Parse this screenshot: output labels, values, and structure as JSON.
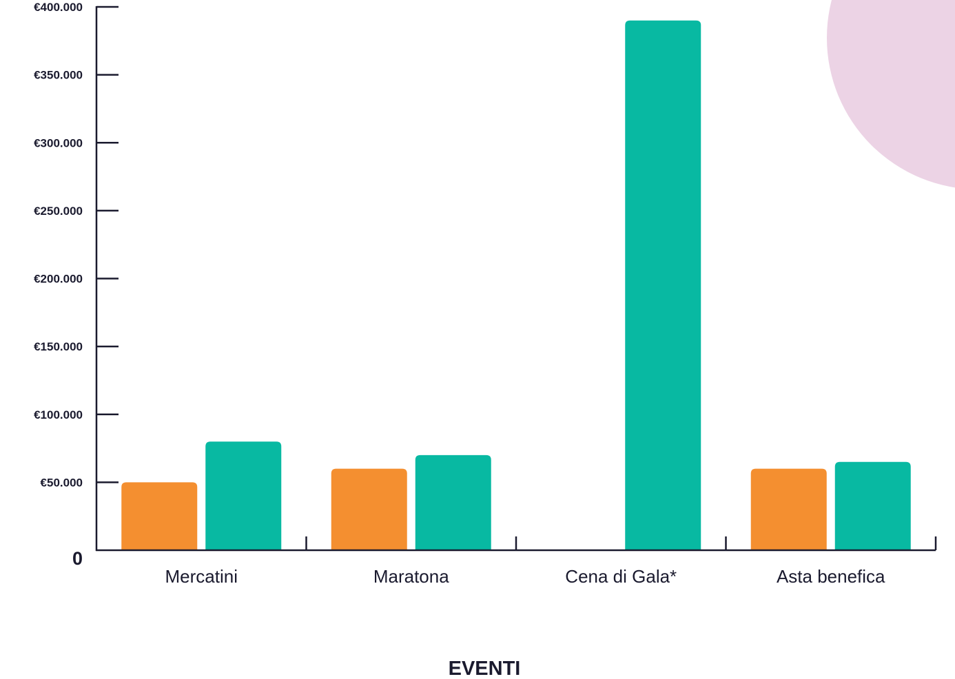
{
  "chart_data": {
    "type": "bar",
    "title": "",
    "xlabel": "EVENTI",
    "ylabel": "",
    "categories": [
      "Mercatini",
      "Maratona",
      "Cena di Gala*",
      "Asta benefica"
    ],
    "series": [
      {
        "values": [
          50000,
          60000,
          0,
          60000
        ],
        "color": "#f48f30"
      },
      {
        "values": [
          80000,
          70000,
          390000,
          65000
        ],
        "color": "#08b9a2"
      }
    ],
    "ylim": [
      0,
      400000
    ],
    "yticks": [
      {
        "value": 0,
        "label": "0"
      },
      {
        "value": 50000,
        "label": "€50.000"
      },
      {
        "value": 100000,
        "label": "€100.000"
      },
      {
        "value": 150000,
        "label": "€150.000"
      },
      {
        "value": 200000,
        "label": "€200.000"
      },
      {
        "value": 250000,
        "label": "€250.000"
      },
      {
        "value": 300000,
        "label": "€300.000"
      },
      {
        "value": 350000,
        "label": "€350.000"
      },
      {
        "value": 400000,
        "label": "€400.000"
      }
    ],
    "grid": false,
    "decoration_color": "#ecd3e5",
    "axis_color": "#1a1a2e"
  }
}
